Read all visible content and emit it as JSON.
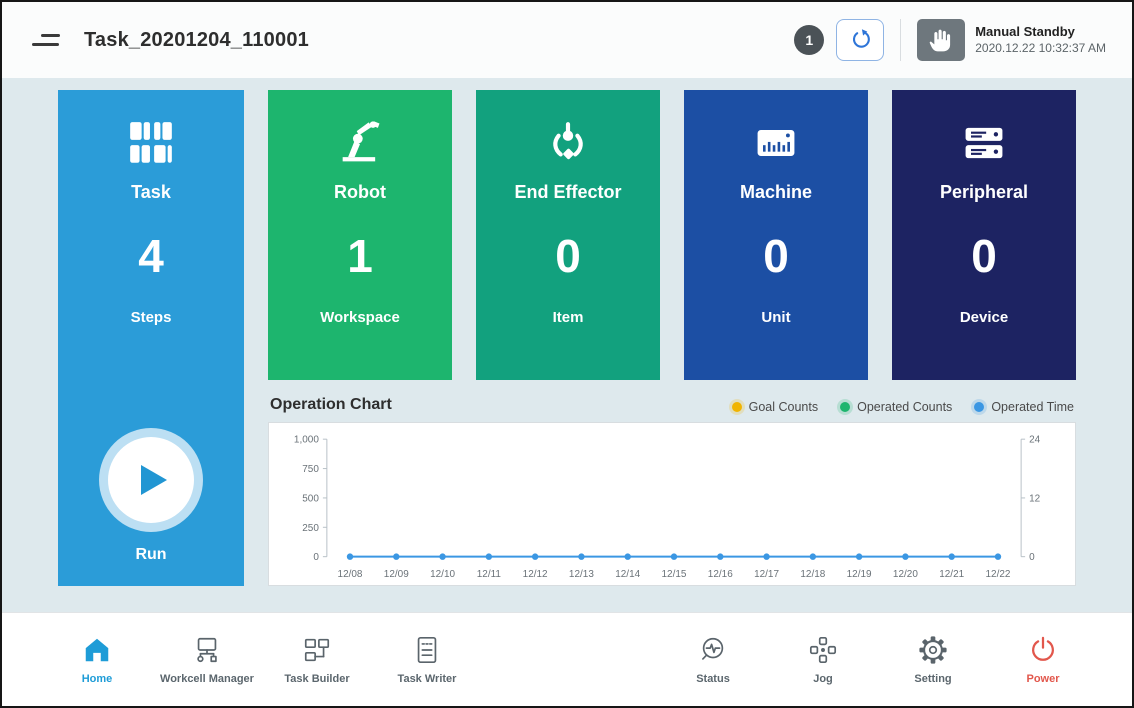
{
  "header": {
    "title": "Task_20201204_110001",
    "badge_count": "1",
    "mode": {
      "label": "Manual Standby",
      "timestamp": "2020.12.22 10:32:37 AM"
    }
  },
  "task_card": {
    "label": "Task",
    "value": "4",
    "unit": "Steps",
    "run_label": "Run",
    "color": "#2b9cd8"
  },
  "cards": [
    {
      "label": "Robot",
      "value": "1",
      "unit": "Workspace",
      "color": "#1db56e"
    },
    {
      "label": "End Effector",
      "value": "0",
      "unit": "Item",
      "color": "#12a17e"
    },
    {
      "label": "Machine",
      "value": "0",
      "unit": "Unit",
      "color": "#1c4fa4"
    },
    {
      "label": "Peripheral",
      "value": "0",
      "unit": "Device",
      "color": "#1d2362"
    }
  ],
  "operation_chart": {
    "title": "Operation Chart",
    "legend": [
      {
        "label": "Goal Counts",
        "color": "#f0b400"
      },
      {
        "label": "Operated Counts",
        "color": "#1db56e"
      },
      {
        "label": "Operated Time",
        "color": "#3b97e3"
      }
    ]
  },
  "chart_data": {
    "type": "line",
    "x": [
      "12/08",
      "12/09",
      "12/10",
      "12/11",
      "12/12",
      "12/13",
      "12/14",
      "12/15",
      "12/16",
      "12/17",
      "12/18",
      "12/19",
      "12/20",
      "12/21",
      "12/22"
    ],
    "series": [
      {
        "name": "Goal Counts",
        "values": [
          0,
          0,
          0,
          0,
          0,
          0,
          0,
          0,
          0,
          0,
          0,
          0,
          0,
          0,
          0
        ]
      },
      {
        "name": "Operated Counts",
        "values": [
          0,
          0,
          0,
          0,
          0,
          0,
          0,
          0,
          0,
          0,
          0,
          0,
          0,
          0,
          0
        ]
      },
      {
        "name": "Operated Time",
        "values": [
          0,
          0,
          0,
          0,
          0,
          0,
          0,
          0,
          0,
          0,
          0,
          0,
          0,
          0,
          0
        ]
      }
    ],
    "y_left": {
      "ticks": [
        0,
        250,
        500,
        750,
        1000
      ],
      "tick_labels": [
        "0",
        "250",
        "500",
        "750",
        "1,000"
      ],
      "range": [
        0,
        1000
      ]
    },
    "y_right": {
      "ticks": [
        0,
        12,
        24
      ],
      "tick_labels": [
        "0",
        "12",
        "24"
      ],
      "range": [
        0,
        24
      ]
    },
    "line_color": "#3b97e3",
    "legend_position": "top-right",
    "grid": false
  },
  "bottom_nav": [
    {
      "label": "Home",
      "active": true
    },
    {
      "label": "Workcell Manager"
    },
    {
      "label": "Task Builder"
    },
    {
      "label": "Task Writer"
    },
    {
      "label": "Status"
    },
    {
      "label": "Jog"
    },
    {
      "label": "Setting"
    },
    {
      "label": "Power"
    }
  ]
}
